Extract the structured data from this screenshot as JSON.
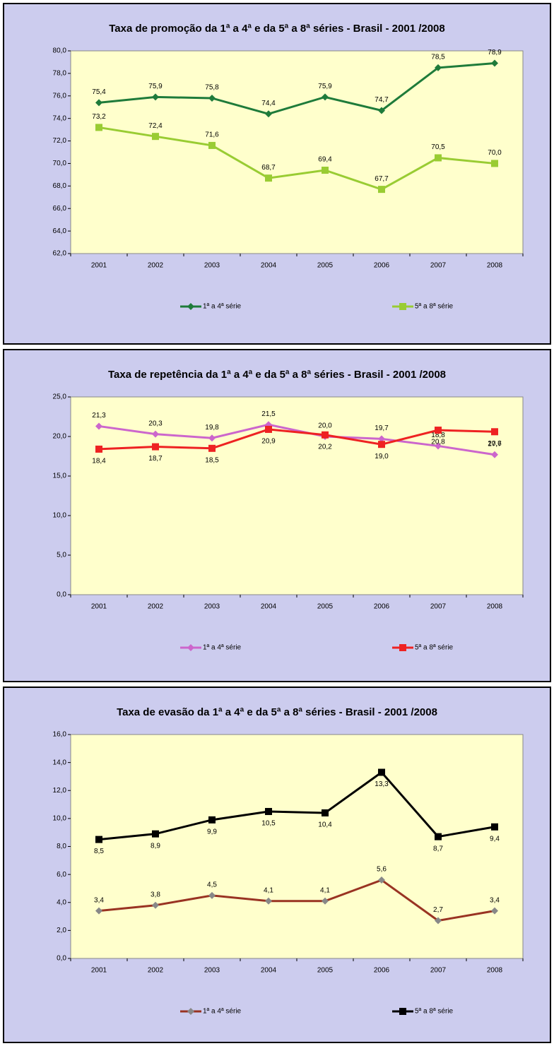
{
  "chart_data": [
    {
      "type": "line",
      "title": "Taxa de promoção da 1ª a 4ª e da 5ª a 8ª séries - Brasil - 2001 /2008",
      "categories": [
        "2001",
        "2002",
        "2003",
        "2004",
        "2005",
        "2006",
        "2007",
        "2008"
      ],
      "ylim": [
        62,
        80
      ],
      "yticks": [
        {
          "value": 62,
          "label": "62,0"
        },
        {
          "value": 64,
          "label": "64,0"
        },
        {
          "value": 66,
          "label": "66,0"
        },
        {
          "value": 68,
          "label": "68,0"
        },
        {
          "value": 70,
          "label": "70,0"
        },
        {
          "value": 72,
          "label": "72,0"
        },
        {
          "value": 74,
          "label": "74,0"
        },
        {
          "value": 76,
          "label": "76,0"
        },
        {
          "value": 78,
          "label": "78,0"
        },
        {
          "value": 80,
          "label": "80,0"
        }
      ],
      "grid": false,
      "legend": "bottom",
      "series": [
        {
          "name": "1ª a 4ª série",
          "color": "#1e7b3a",
          "marker": "diamond",
          "marker_color": "#1e7b3a",
          "label_position": "above",
          "values": [
            75.4,
            75.9,
            75.8,
            74.4,
            75.9,
            74.7,
            78.5,
            78.9
          ],
          "value_labels": [
            "75,4",
            "75,9",
            "75,8",
            "74,4",
            "75,9",
            "74,7",
            "78,5",
            "78,9"
          ]
        },
        {
          "name": "5ª a 8ª série",
          "color": "#99cc33",
          "marker": "square",
          "marker_color": "#99cc33",
          "label_position": "above",
          "values": [
            73.2,
            72.4,
            71.6,
            68.7,
            69.4,
            67.7,
            70.5,
            70.0
          ],
          "value_labels": [
            "73,2",
            "72,4",
            "71,6",
            "68,7",
            "69,4",
            "67,7",
            "70,5",
            "70,0"
          ]
        }
      ]
    },
    {
      "type": "line",
      "title": "Taxa de repetência da 1ª a 4ª e da 5ª a 8ª séries - Brasil - 2001 /2008",
      "categories": [
        "2001",
        "2002",
        "2003",
        "2004",
        "2005",
        "2006",
        "2007",
        "2008"
      ],
      "ylim": [
        0,
        25
      ],
      "yticks": [
        {
          "value": 0,
          "label": "0,0"
        },
        {
          "value": 5,
          "label": "5,0"
        },
        {
          "value": 10,
          "label": "10,0"
        },
        {
          "value": 15,
          "label": "15,0"
        },
        {
          "value": 20,
          "label": "20,0"
        },
        {
          "value": 25,
          "label": "25,0"
        }
      ],
      "grid": false,
      "legend": "bottom",
      "series": [
        {
          "name": "1ª a 4ª série",
          "color": "#cc66cc",
          "marker": "diamond",
          "marker_color": "#cc66cc",
          "label_position": "above",
          "values": [
            21.3,
            20.3,
            19.8,
            21.5,
            20.0,
            19.7,
            18.8,
            17.7
          ],
          "value_labels": [
            "21,3",
            "20,3",
            "19,8",
            "21,5",
            "20,0",
            "19,7",
            "18,8",
            "17,7"
          ]
        },
        {
          "name": "5ª a 8ª série",
          "color": "#ee2222",
          "marker": "square",
          "marker_color": "#ee2222",
          "label_position": "below",
          "values": [
            18.4,
            18.7,
            18.5,
            20.9,
            20.2,
            19.0,
            20.8,
            20.6
          ],
          "value_labels": [
            "18,4",
            "18,7",
            "18,5",
            "20,9",
            "20,2",
            "19,0",
            "20,8",
            "20,6"
          ]
        }
      ]
    },
    {
      "type": "line",
      "title": "Taxa de evasão da 1ª a 4ª e da 5ª a 8ª séries - Brasil - 2001 /2008",
      "categories": [
        "2001",
        "2002",
        "2003",
        "2004",
        "2005",
        "2006",
        "2007",
        "2008"
      ],
      "ylim": [
        0,
        16
      ],
      "yticks": [
        {
          "value": 0,
          "label": "0,0"
        },
        {
          "value": 2,
          "label": "2,0"
        },
        {
          "value": 4,
          "label": "4,0"
        },
        {
          "value": 6,
          "label": "6,0"
        },
        {
          "value": 8,
          "label": "8,0"
        },
        {
          "value": 10,
          "label": "10,0"
        },
        {
          "value": 12,
          "label": "12,0"
        },
        {
          "value": 14,
          "label": "14,0"
        },
        {
          "value": 16,
          "label": "16,0"
        }
      ],
      "grid": false,
      "legend": "bottom",
      "series": [
        {
          "name": "1ª a 4ª série",
          "color": "#993322",
          "marker": "diamond",
          "marker_color": "#888888",
          "label_position": "above",
          "values": [
            3.4,
            3.8,
            4.5,
            4.1,
            4.1,
            5.6,
            2.7,
            3.4
          ],
          "value_labels": [
            "3,4",
            "3,8",
            "4,5",
            "4,1",
            "4,1",
            "5,6",
            "2,7",
            "3,4"
          ]
        },
        {
          "name": "5ª a 8ª série",
          "color": "#000000",
          "marker": "square",
          "marker_color": "#000000",
          "label_position": "below",
          "values": [
            8.5,
            8.9,
            9.9,
            10.5,
            10.4,
            13.3,
            8.7,
            9.4
          ],
          "value_labels": [
            "8,5",
            "8,9",
            "9,9",
            "10,5",
            "10,4",
            "13,3",
            "8,7",
            "9,4"
          ]
        }
      ]
    }
  ]
}
